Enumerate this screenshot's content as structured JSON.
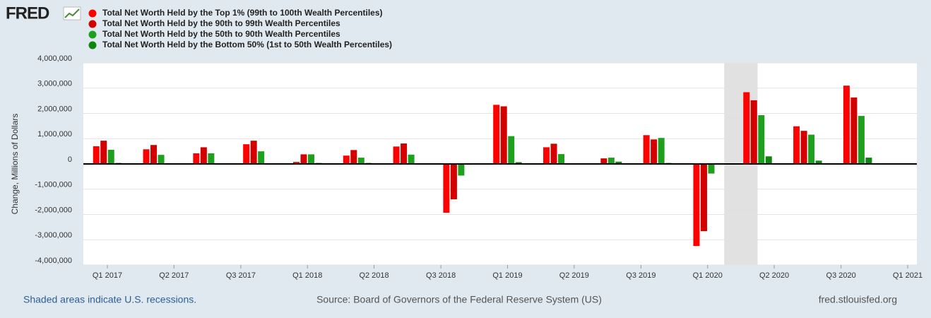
{
  "logo": "FRED",
  "chart_data": {
    "type": "bar",
    "ylabel": "Change, Millions of Dollars",
    "note": "Shaded areas indicate U.S. recessions.",
    "source": "Source: Board of Governors of the Federal Reserve System (US)",
    "site": "fred.stlouisfed.org",
    "x": [
      2017,
      2017.25,
      2017.5,
      2017.75,
      2018,
      2018.25,
      2018.5,
      2018.75,
      2019,
      2019.25,
      2019.5,
      2019.75,
      2020,
      2020.25,
      2020.5,
      2020.75
    ],
    "series": [
      {
        "name": "Total Net Worth Held by the Top 1% (99th to 100th Wealth Percentiles)",
        "color": "#ff0000",
        "values": [
          700000,
          580000,
          420000,
          780000,
          80000,
          330000,
          690000,
          -1930000,
          2340000,
          660000,
          10000,
          1140000,
          -3250000,
          2840000,
          1490000,
          3100000
        ]
      },
      {
        "name": "Total Net Worth Held by the 90th to 99th Wealth Percentiles",
        "color": "#d40000",
        "values": [
          920000,
          750000,
          660000,
          920000,
          380000,
          550000,
          810000,
          -1400000,
          2280000,
          800000,
          220000,
          970000,
          -2660000,
          2520000,
          1310000,
          2630000
        ]
      },
      {
        "name": "Total Net Worth Held by the 50th to 90th Wealth Percentiles",
        "color": "#1ea01e",
        "values": [
          560000,
          360000,
          420000,
          500000,
          380000,
          250000,
          370000,
          -460000,
          1100000,
          390000,
          250000,
          1030000,
          -380000,
          1930000,
          1160000,
          1900000
        ]
      },
      {
        "name": "Total Net Worth Held by the Bottom 50% (1st to 50th Wealth Percentiles)",
        "color": "#0e860e",
        "values": [
          40000,
          30000,
          10000,
          10000,
          40000,
          40000,
          10000,
          -30000,
          70000,
          10000,
          90000,
          40000,
          0,
          300000,
          130000,
          250000
        ]
      }
    ],
    "recessions": [
      [
        2020.083,
        2020.25
      ]
    ],
    "xlim": [
      2016.88,
      2021.046
    ],
    "xticks": [
      {
        "value": 2017,
        "label": "Q1 2017"
      },
      {
        "value": 2017.333,
        "label": "Q2 2017"
      },
      {
        "value": 2017.667,
        "label": "Q3 2017"
      },
      {
        "value": 2018,
        "label": "Q1 2018"
      },
      {
        "value": 2018.333,
        "label": "Q2 2018"
      },
      {
        "value": 2018.667,
        "label": "Q3 2018"
      },
      {
        "value": 2019,
        "label": "Q1 2019"
      },
      {
        "value": 2019.333,
        "label": "Q2 2019"
      },
      {
        "value": 2019.667,
        "label": "Q3 2019"
      },
      {
        "value": 2020,
        "label": "Q1 2020"
      },
      {
        "value": 2020.333,
        "label": "Q2 2020"
      },
      {
        "value": 2020.667,
        "label": "Q3 2020"
      },
      {
        "value": 2021,
        "label": "Q1 2021"
      }
    ],
    "ylim": [
      -4000000,
      4000000
    ],
    "yticks": [
      {
        "value": -4000000,
        "label": "-4,000,000"
      },
      {
        "value": -3000000,
        "label": "-3,000,000"
      },
      {
        "value": -2000000,
        "label": "-2,000,000"
      },
      {
        "value": -1000000,
        "label": "-1,000,000"
      },
      0,
      {
        "value": 1000000,
        "label": "1,000,000"
      },
      {
        "value": 2000000,
        "label": "2,000,000"
      },
      {
        "value": 3000000,
        "label": "3,000,000"
      },
      {
        "value": 4000000,
        "label": "4,000,000"
      }
    ],
    "grid": true
  }
}
